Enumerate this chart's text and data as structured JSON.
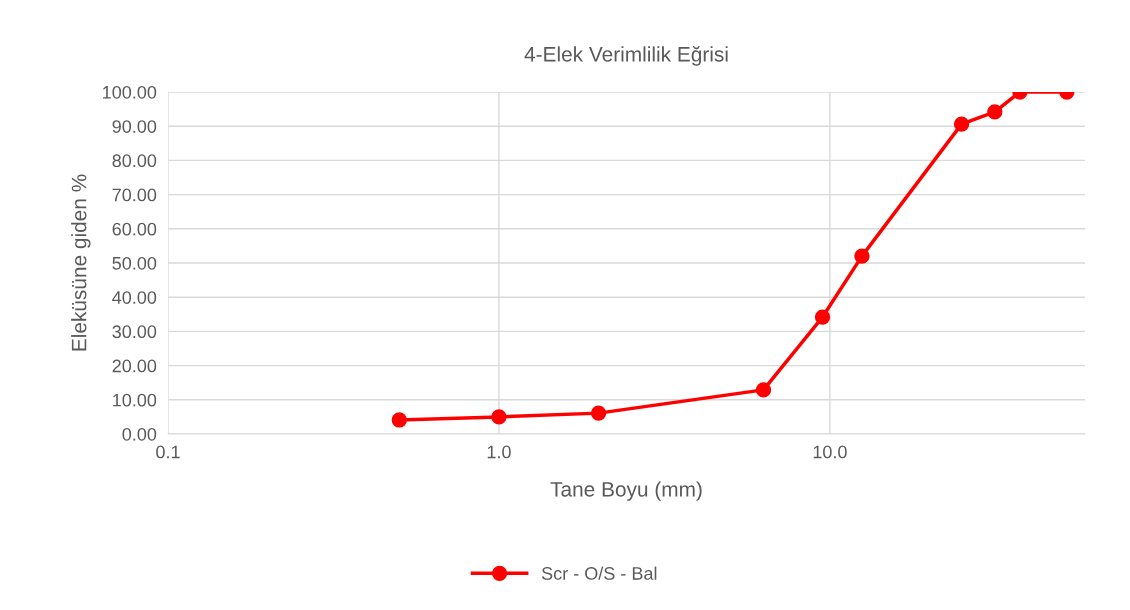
{
  "chart_data": {
    "type": "line",
    "title": "4-Elek Verimlilik Eğrisi",
    "xlabel": "Tane Boyu (mm)",
    "ylabel": "Eleküsüne giden %",
    "x": [
      0.5,
      1.0,
      2.0,
      6.3,
      9.5,
      12.5,
      25,
      31.5,
      37.5,
      52
    ],
    "series": [
      {
        "name": "Scr - O/S - Bal",
        "color": "#ff0000",
        "values": [
          4.1,
          5.0,
          6.1,
          12.9,
          34.2,
          52.0,
          90.6,
          94.2,
          100,
          100
        ]
      }
    ],
    "log": "x",
    "xlim": [
      0.1,
      59
    ],
    "xticks": [
      {
        "value": 0.1,
        "label": "0.1"
      },
      {
        "value": 1,
        "label": "1.0"
      },
      {
        "value": 10,
        "label": "10.0"
      }
    ],
    "ylim": [
      0,
      100
    ],
    "yticks": [
      {
        "value": 0,
        "label": "0.00"
      },
      {
        "value": 10,
        "label": "10.00"
      },
      {
        "value": 20,
        "label": "20.00"
      },
      {
        "value": 30,
        "label": "30.00"
      },
      {
        "value": 40,
        "label": "40.00"
      },
      {
        "value": 50,
        "label": "50.00"
      },
      {
        "value": 60,
        "label": "60.00"
      },
      {
        "value": 70,
        "label": "70.00"
      },
      {
        "value": 80,
        "label": "80.00"
      },
      {
        "value": 90,
        "label": "90.00"
      },
      {
        "value": 100,
        "label": "100.00"
      }
    ],
    "grid": true,
    "legend": "bottom",
    "marker": "circle",
    "line_style": "solid"
  }
}
